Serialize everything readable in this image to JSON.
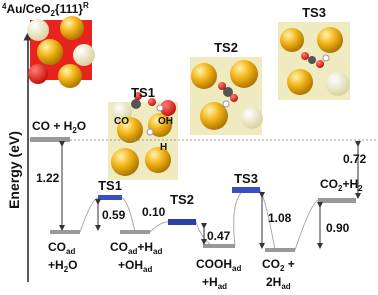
{
  "title": {
    "sup": "4",
    "main": "Au/CeO",
    "sub": "2",
    "tail": "{111}",
    "sup2": "R"
  },
  "y_axis_label": "Energy (eV)",
  "panels": {
    "ts1": {
      "label": "TS1",
      "atoms": [
        "CO",
        "OH",
        "H"
      ]
    },
    "ts2": {
      "label": "TS2"
    },
    "ts3": {
      "label": "TS3"
    }
  },
  "states": {
    "initial": {
      "a": "CO + H",
      "a_sub": "2",
      "b": "O"
    },
    "co_ad": {
      "line1": "CO",
      "line1_sub": "ad",
      "line2": "+H",
      "line2_sub": "2",
      "line2_end": "O"
    },
    "ts1": "TS1",
    "coh_oh": {
      "line1": "CO",
      "line1_sub": "ad",
      "line1_mid": "+H",
      "line1_sub2": "ad",
      "line2": "+OH",
      "line2_sub": "ad"
    },
    "ts2": "TS2",
    "cooh": {
      "line1": "COOH",
      "line1_sub": "ad",
      "line2": "+H",
      "line2_sub": "ad"
    },
    "ts3": "TS3",
    "co2_2h": {
      "line1": "CO",
      "line1_sub": "2",
      "line1_end": " +",
      "line2": "2H",
      "line2_sub": "ad"
    },
    "co2_h2": {
      "a": "CO",
      "a_sub": "2",
      "b": "+H",
      "b_sub": "2"
    }
  },
  "energies": {
    "adsorption": "1.22",
    "ts1_barrier": "0.59",
    "ts2_barrier": "0.10",
    "cooh_step": "0.47",
    "ts3_barrier": "1.08",
    "co2_step": "0.90",
    "desorption": "0.72"
  }
}
